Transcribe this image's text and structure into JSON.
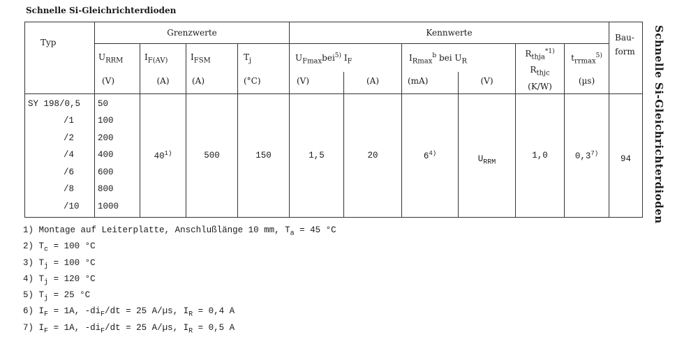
{
  "title": "Schnelle Si-Gleichrichterdioden",
  "side_title": "Schnelle Si-Gleichrichterdioden",
  "header": {
    "typ": "Typ",
    "grenzwerte": "Grenzwerte",
    "kennwerte": "Kennwerte",
    "bauform": "Bau-form",
    "urrm": "U",
    "urrm_sub": "RRM",
    "urrm_unit": "(V)",
    "ifav": "I",
    "ifav_sub": "F(AV)",
    "ifav_unit": "(A)",
    "ifsm": "I",
    "ifsm_sub": "FSM",
    "ifsm_unit": "(A)",
    "tj": "T",
    "tj_sub": "j",
    "tj_unit": "(°C)",
    "uf": "U",
    "uf_sub": "Fmax",
    "uf_bei": "bei",
    "uf_sup": "5)",
    "uf_unit": "(V)",
    "if": "I",
    "if_sub": "F",
    "if_unit": "(A)",
    "ir": "I",
    "ir_sub": "Rmax",
    "ir_sup": "b",
    "ir_bei": "bei",
    "ir_unit": "(mA)",
    "ur": "U",
    "ur_sub": "R",
    "ur_unit": "(V)",
    "rth": "R",
    "rthja_sub": "thja",
    "rth_sup": "*1)",
    "rthjc_sub": "thjc",
    "rth_unit": "(K/W)",
    "trr": "t",
    "trr_sub": "rrmax",
    "trr_sup": "5)",
    "trr_unit": "(µs)"
  },
  "rows": [
    {
      "typ": "SY 198/0,5",
      "urrm": "50"
    },
    {
      "typ": "/1",
      "urrm": "100"
    },
    {
      "typ": "/2",
      "urrm": "200"
    },
    {
      "typ": "/4",
      "urrm": "400"
    },
    {
      "typ": "/6",
      "urrm": "600"
    },
    {
      "typ": "/8",
      "urrm": "800"
    },
    {
      "typ": "/10",
      "urrm": "1000"
    }
  ],
  "common": {
    "ifav": "40",
    "ifav_sup": "1)",
    "ifsm": "500",
    "tj": "150",
    "uf": "1,5",
    "if": "20",
    "ir": "6",
    "ir_sup": "4)",
    "ur": "U",
    "ur_sub": "RRM",
    "rth": "1,0",
    "trr": "0,3",
    "trr_sup": "7)",
    "bauform": "94"
  },
  "footnotes": [
    {
      "n": "1)",
      "a": "Montage auf Leiterplatte, Anschlußlänge 10 mm, T",
      "s": "a",
      "b": " = 45 °C"
    },
    {
      "n": "2)",
      "a": "T",
      "s": "c",
      "b": " = 100 °C"
    },
    {
      "n": "3)",
      "a": "T",
      "s": "j",
      "b": " = 100 °C"
    },
    {
      "n": "4)",
      "a": "T",
      "s": "j",
      "b": " = 120 °C"
    },
    {
      "n": "5)",
      "a": "T",
      "s": "j",
      "b": " = 25 °C"
    },
    {
      "n": "6)",
      "a": "I",
      "s": "F",
      "b": " = 1A, -di",
      "s2": "F",
      "c": "/dt = 25 A/µs, I",
      "s3": "R",
      "d": " = 0,4 A"
    },
    {
      "n": "7)",
      "a": "I",
      "s": "F",
      "b": " = 1A, -di",
      "s2": "F",
      "c": "/dt = 25 A/µs, I",
      "s3": "R",
      "d": " = 0,5 A"
    }
  ]
}
